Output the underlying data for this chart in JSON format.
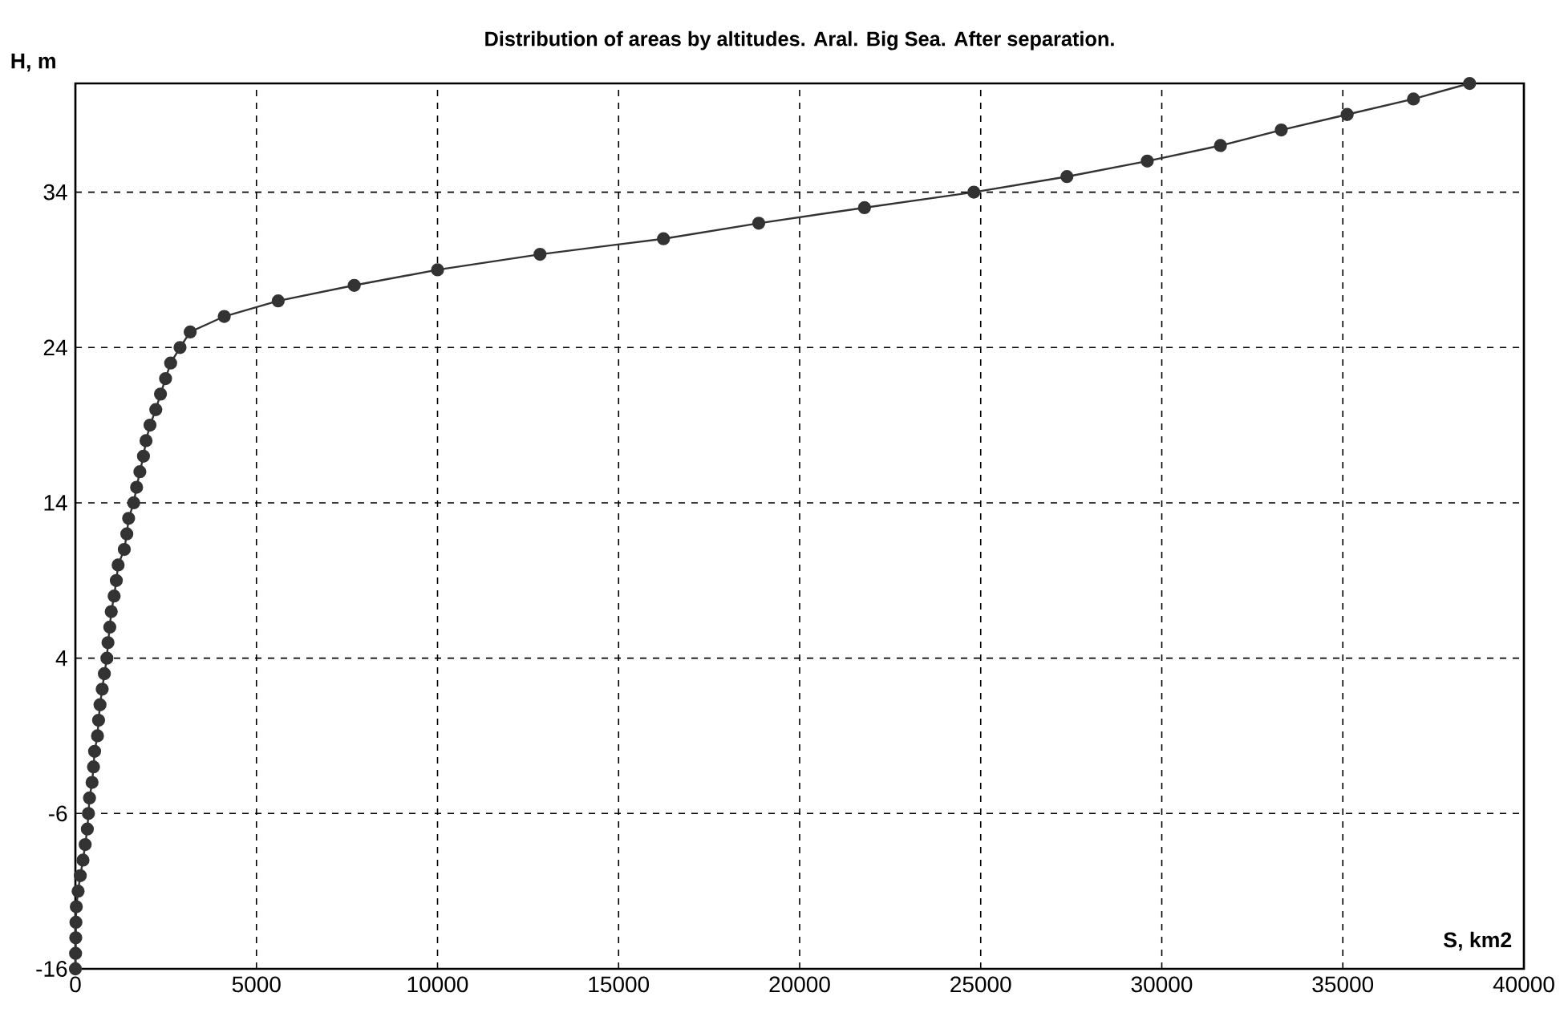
{
  "chart_data": {
    "type": "line",
    "title": "Distribution of areas by altitudes. Aral. Big Sea. After separation.",
    "xlabel": "S, km2",
    "ylabel": "H, m",
    "xlim": [
      0,
      40000
    ],
    "xticks": [
      0,
      5000,
      10000,
      15000,
      20000,
      25000,
      30000,
      35000,
      40000
    ],
    "ylim": [
      -16,
      41
    ],
    "yticks": [
      -16,
      -6,
      4,
      14,
      24,
      34
    ],
    "grid": true,
    "marker": "circle",
    "line_style": "solid",
    "series": [
      {
        "color": "#333333",
        "x": [
          0,
          5,
          10,
          15,
          25,
          75,
          135,
          210,
          270,
          330,
          360,
          390,
          460,
          500,
          530,
          610,
          640,
          680,
          740,
          800,
          870,
          900,
          950,
          990,
          1070,
          1130,
          1180,
          1350,
          1420,
          1470,
          1610,
          1690,
          1780,
          1880,
          1950,
          2060,
          2220,
          2350,
          2490,
          2630,
          2890,
          3170,
          4110,
          5600,
          7700,
          10000,
          12830,
          16240,
          18870,
          21790,
          24810,
          27380,
          29600,
          31620,
          33300,
          35120,
          36950,
          38500
        ],
        "values": [
          -16,
          -15,
          -14,
          -13,
          -12,
          -11,
          -10,
          -9,
          -8,
          -7,
          -6,
          -5,
          -4,
          -3,
          -2,
          -1,
          0,
          1,
          2,
          3,
          4,
          5,
          6,
          7,
          8,
          9,
          10,
          11,
          12,
          13,
          14,
          15,
          16,
          17,
          18,
          19,
          20,
          21,
          22,
          23,
          24,
          25,
          26,
          27,
          28,
          29,
          30,
          31,
          32,
          33,
          34,
          35,
          36,
          37,
          38,
          39,
          40,
          41
        ]
      }
    ]
  }
}
